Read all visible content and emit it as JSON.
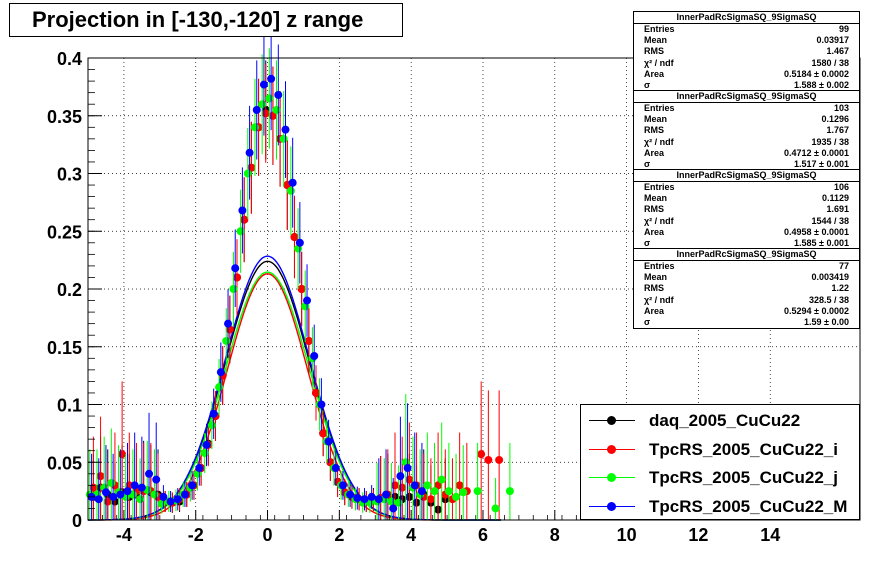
{
  "title": "Projection in [-130,-120] z range",
  "chart_data": {
    "type": "scatter",
    "xlim": [
      -5,
      16.5
    ],
    "ylim": [
      0,
      0.4
    ],
    "x_ticks": [
      -4,
      -2,
      0,
      2,
      4,
      6,
      8,
      10,
      12,
      14
    ],
    "y_ticks": [
      0,
      0.05,
      0.1,
      0.15,
      0.2,
      0.25,
      0.3,
      0.35,
      0.4
    ],
    "x_tick_labels": [
      "-4",
      "-2",
      "0",
      "2",
      "4",
      "6",
      "8",
      "10",
      "12",
      "14"
    ],
    "y_tick_labels": [
      "0",
      "0.05",
      "0.1",
      "0.15",
      "0.2",
      "0.25",
      "0.3",
      "0.35",
      "0.4"
    ],
    "grid": true,
    "legend_position": "bottom-right",
    "series": [
      {
        "name": "daq_2005_CuCu22",
        "color": "#000000",
        "fit": {
          "area": 0.5184,
          "sigma": 1.588
        },
        "points": [
          [
            -4.85,
            0.02
          ],
          [
            -4.65,
            0.028
          ],
          [
            -4.45,
            0.022
          ],
          [
            -4.25,
            0.016
          ],
          [
            -4.05,
            0.024
          ],
          [
            -3.85,
            0.02
          ],
          [
            -3.65,
            0.022
          ],
          [
            -3.45,
            0.026
          ],
          [
            -3.25,
            0.024
          ],
          [
            -3.05,
            0.022
          ],
          [
            -2.85,
            0.016
          ],
          [
            -2.65,
            0.015
          ],
          [
            -2.45,
            0.016
          ],
          [
            -2.25,
            0.022
          ],
          [
            -2.05,
            0.03
          ],
          [
            -1.85,
            0.045
          ],
          [
            -1.65,
            0.066
          ],
          [
            -1.45,
            0.09
          ],
          [
            -1.25,
            0.125
          ],
          [
            -1.05,
            0.165
          ],
          [
            -0.85,
            0.21
          ],
          [
            -0.65,
            0.26
          ],
          [
            -0.45,
            0.305
          ],
          [
            -0.25,
            0.34
          ],
          [
            -0.05,
            0.355
          ],
          [
            0.15,
            0.35
          ],
          [
            0.35,
            0.33
          ],
          [
            0.55,
            0.29
          ],
          [
            0.75,
            0.245
          ],
          [
            0.95,
            0.2
          ],
          [
            1.15,
            0.155
          ],
          [
            1.35,
            0.11
          ],
          [
            1.55,
            0.075
          ],
          [
            1.75,
            0.05
          ],
          [
            1.95,
            0.033
          ],
          [
            2.15,
            0.024
          ],
          [
            2.35,
            0.02
          ],
          [
            2.55,
            0.018
          ],
          [
            2.75,
            0.016
          ],
          [
            2.95,
            0.018
          ],
          [
            3.15,
            0.019
          ],
          [
            3.35,
            0.02
          ],
          [
            3.55,
            0.02
          ],
          [
            3.75,
            0.018
          ],
          [
            3.95,
            0.02
          ],
          [
            4.15,
            0.015
          ],
          [
            4.35,
            0.022
          ],
          [
            4.55,
            0.015
          ],
          [
            4.75,
            0.009
          ],
          [
            4.95,
            0.018
          ]
        ]
      },
      {
        "name": "TpcRS_2005_CuCu22_i",
        "color": "#ff0000",
        "fit": {
          "area": 0.4712,
          "sigma": 1.517
        },
        "points": [
          [
            -4.85,
            0.028
          ],
          [
            -4.65,
            0.038
          ],
          [
            -4.45,
            0.016
          ],
          [
            -4.25,
            0.03
          ],
          [
            -4.05,
            0.057
          ],
          [
            -3.85,
            0.03
          ],
          [
            -3.65,
            0.025
          ],
          [
            -3.45,
            0.025
          ],
          [
            -3.25,
            0.025
          ],
          [
            -3.05,
            0.02
          ],
          [
            -2.85,
            0.016
          ],
          [
            -2.65,
            0.015
          ],
          [
            -2.45,
            0.018
          ],
          [
            -2.25,
            0.022
          ],
          [
            -2.05,
            0.03
          ],
          [
            -1.85,
            0.045
          ],
          [
            -1.65,
            0.065
          ],
          [
            -1.45,
            0.09
          ],
          [
            -1.25,
            0.125
          ],
          [
            -1.05,
            0.165
          ],
          [
            -0.85,
            0.21
          ],
          [
            -0.65,
            0.26
          ],
          [
            -0.45,
            0.305
          ],
          [
            -0.25,
            0.34
          ],
          [
            -0.05,
            0.352
          ],
          [
            0.15,
            0.35
          ],
          [
            0.35,
            0.33
          ],
          [
            0.55,
            0.29
          ],
          [
            0.75,
            0.245
          ],
          [
            0.95,
            0.2
          ],
          [
            1.15,
            0.155
          ],
          [
            1.35,
            0.11
          ],
          [
            1.55,
            0.075
          ],
          [
            1.75,
            0.05
          ],
          [
            1.95,
            0.033
          ],
          [
            2.15,
            0.024
          ],
          [
            2.35,
            0.02
          ],
          [
            2.55,
            0.018
          ],
          [
            2.75,
            0.016
          ],
          [
            2.95,
            0.017
          ],
          [
            3.15,
            0.019
          ],
          [
            3.35,
            0.022
          ],
          [
            3.55,
            0.03
          ],
          [
            3.75,
            0.028
          ],
          [
            3.95,
            0.035
          ],
          [
            4.15,
            0.03
          ],
          [
            4.35,
            0.02
          ],
          [
            4.55,
            0.018
          ],
          [
            4.75,
            0.03
          ],
          [
            4.95,
            0.022
          ],
          [
            5.15,
            0.018
          ],
          [
            5.35,
            0.03
          ],
          [
            5.55,
            0.025
          ],
          [
            5.95,
            0.057
          ],
          [
            6.15,
            0.052
          ],
          [
            6.45,
            0.052
          ]
        ]
      },
      {
        "name": "TpcRS_2005_CuCu22_j",
        "color": "#00ff00",
        "fit": {
          "area": 0.4958,
          "sigma": 1.585
        },
        "points": [
          [
            -4.95,
            0.022
          ],
          [
            -4.75,
            0.022
          ],
          [
            -4.55,
            0.028
          ],
          [
            -4.35,
            0.032
          ],
          [
            -4.15,
            0.024
          ],
          [
            -3.95,
            0.02
          ],
          [
            -3.75,
            0.022
          ],
          [
            -3.55,
            0.018
          ],
          [
            -3.35,
            0.026
          ],
          [
            -3.15,
            0.022
          ],
          [
            -2.95,
            0.014
          ],
          [
            -2.75,
            0.016
          ],
          [
            -2.55,
            0.017
          ],
          [
            -2.35,
            0.022
          ],
          [
            -2.15,
            0.028
          ],
          [
            -1.95,
            0.04
          ],
          [
            -1.75,
            0.058
          ],
          [
            -1.55,
            0.082
          ],
          [
            -1.35,
            0.115
          ],
          [
            -1.15,
            0.155
          ],
          [
            -0.95,
            0.2
          ],
          [
            -0.75,
            0.25
          ],
          [
            -0.55,
            0.3
          ],
          [
            -0.35,
            0.34
          ],
          [
            -0.15,
            0.36
          ],
          [
            0.05,
            0.365
          ],
          [
            0.25,
            0.355
          ],
          [
            0.45,
            0.33
          ],
          [
            0.65,
            0.285
          ],
          [
            0.85,
            0.235
          ],
          [
            1.05,
            0.185
          ],
          [
            1.25,
            0.14
          ],
          [
            1.45,
            0.1
          ],
          [
            1.65,
            0.068
          ],
          [
            1.85,
            0.045
          ],
          [
            2.05,
            0.03
          ],
          [
            2.25,
            0.022
          ],
          [
            2.45,
            0.018
          ],
          [
            2.65,
            0.015
          ],
          [
            2.85,
            0.015
          ],
          [
            3.05,
            0.016
          ],
          [
            3.25,
            0.018
          ],
          [
            3.45,
            0.016
          ],
          [
            3.65,
            0.015
          ],
          [
            3.85,
            0.05
          ],
          [
            4.05,
            0.028
          ],
          [
            4.25,
            0.022
          ],
          [
            4.45,
            0.03
          ],
          [
            4.65,
            0.025
          ],
          [
            4.85,
            0.035
          ],
          [
            5.05,
            0.025
          ],
          [
            5.25,
            0.02
          ],
          [
            5.45,
            0.024
          ],
          [
            5.85,
            0.025
          ],
          [
            6.35,
            0.01
          ],
          [
            6.75,
            0.025
          ]
        ]
      },
      {
        "name": "TpcRS_2005_CuCu22_M",
        "color": "#0000ff",
        "fit": {
          "area": 0.5294,
          "sigma": 1.59
        },
        "points": [
          [
            -4.9,
            0.02
          ],
          [
            -4.7,
            0.018
          ],
          [
            -4.5,
            0.024
          ],
          [
            -4.3,
            0.02
          ],
          [
            -4.1,
            0.022
          ],
          [
            -3.9,
            0.025
          ],
          [
            -3.7,
            0.03
          ],
          [
            -3.5,
            0.028
          ],
          [
            -3.3,
            0.04
          ],
          [
            -3.1,
            0.035
          ],
          [
            -2.9,
            0.02
          ],
          [
            -2.7,
            0.016
          ],
          [
            -2.5,
            0.018
          ],
          [
            -2.3,
            0.022
          ],
          [
            -2.1,
            0.03
          ],
          [
            -1.9,
            0.045
          ],
          [
            -1.7,
            0.065
          ],
          [
            -1.5,
            0.092
          ],
          [
            -1.3,
            0.128
          ],
          [
            -1.1,
            0.17
          ],
          [
            -0.9,
            0.218
          ],
          [
            -0.7,
            0.268
          ],
          [
            -0.5,
            0.318
          ],
          [
            -0.3,
            0.355
          ],
          [
            -0.1,
            0.377
          ],
          [
            0.1,
            0.382
          ],
          [
            0.3,
            0.368
          ],
          [
            0.5,
            0.338
          ],
          [
            0.7,
            0.292
          ],
          [
            0.9,
            0.24
          ],
          [
            1.1,
            0.19
          ],
          [
            1.3,
            0.142
          ],
          [
            1.5,
            0.1
          ],
          [
            1.7,
            0.068
          ],
          [
            1.9,
            0.045
          ],
          [
            2.1,
            0.03
          ],
          [
            2.3,
            0.022
          ],
          [
            2.5,
            0.019
          ],
          [
            2.7,
            0.018
          ],
          [
            2.9,
            0.02
          ],
          [
            3.1,
            0.018
          ],
          [
            3.3,
            0.022
          ],
          [
            3.5,
            0.01
          ],
          [
            3.7,
            0.038
          ],
          [
            3.9,
            0.045
          ],
          [
            4.1,
            0.03
          ],
          [
            4.3,
            0.025
          ]
        ]
      }
    ]
  },
  "stats": [
    {
      "title": "InnerPadRcSigmaSQ_9SigmaSQ",
      "rows": [
        [
          "Entries",
          "99"
        ],
        [
          "Mean",
          "0.03917"
        ],
        [
          "RMS",
          "1.467"
        ],
        [
          "χ² / ndf",
          "1580 / 38"
        ],
        [
          "Area",
          "0.5184 ± 0.0002"
        ],
        [
          "σ",
          "1.588 ± 0.002"
        ]
      ]
    },
    {
      "title": "InnerPadRcSigmaSQ_9SigmaSQ",
      "rows": [
        [
          "Entries",
          "103"
        ],
        [
          "Mean",
          "0.1296"
        ],
        [
          "RMS",
          "1.767"
        ],
        [
          "χ² / ndf",
          "1935 / 38"
        ],
        [
          "Area",
          "0.4712 ± 0.0001"
        ],
        [
          "σ",
          "1.517 ± 0.001"
        ]
      ]
    },
    {
      "title": "InnerPadRcSigmaSQ_9SigmaSQ",
      "rows": [
        [
          "Entries",
          "106"
        ],
        [
          "Mean",
          "0.1129"
        ],
        [
          "RMS",
          "1.691"
        ],
        [
          "χ² / ndf",
          "1544 / 38"
        ],
        [
          "Area",
          "0.4958 ± 0.0001"
        ],
        [
          "σ",
          "1.585 ± 0.001"
        ]
      ]
    },
    {
      "title": "InnerPadRcSigmaSQ_9SigmaSQ",
      "rows": [
        [
          "Entries",
          "77"
        ],
        [
          "Mean",
          "0.003419"
        ],
        [
          "RMS",
          "1.22"
        ],
        [
          "χ² / ndf",
          "328.5 / 38"
        ],
        [
          "Area",
          "0.5294 ± 0.0002"
        ],
        [
          "σ",
          "1.59 ± 0.00"
        ]
      ]
    }
  ],
  "legend": [
    {
      "label": "daq_2005_CuCu22",
      "color": "#000000"
    },
    {
      "label": "TpcRS_2005_CuCu22_i",
      "color": "#ff0000"
    },
    {
      "label": "TpcRS_2005_CuCu22_j",
      "color": "#00ff00"
    },
    {
      "label": "TpcRS_2005_CuCu22_M",
      "color": "#0000ff"
    }
  ]
}
